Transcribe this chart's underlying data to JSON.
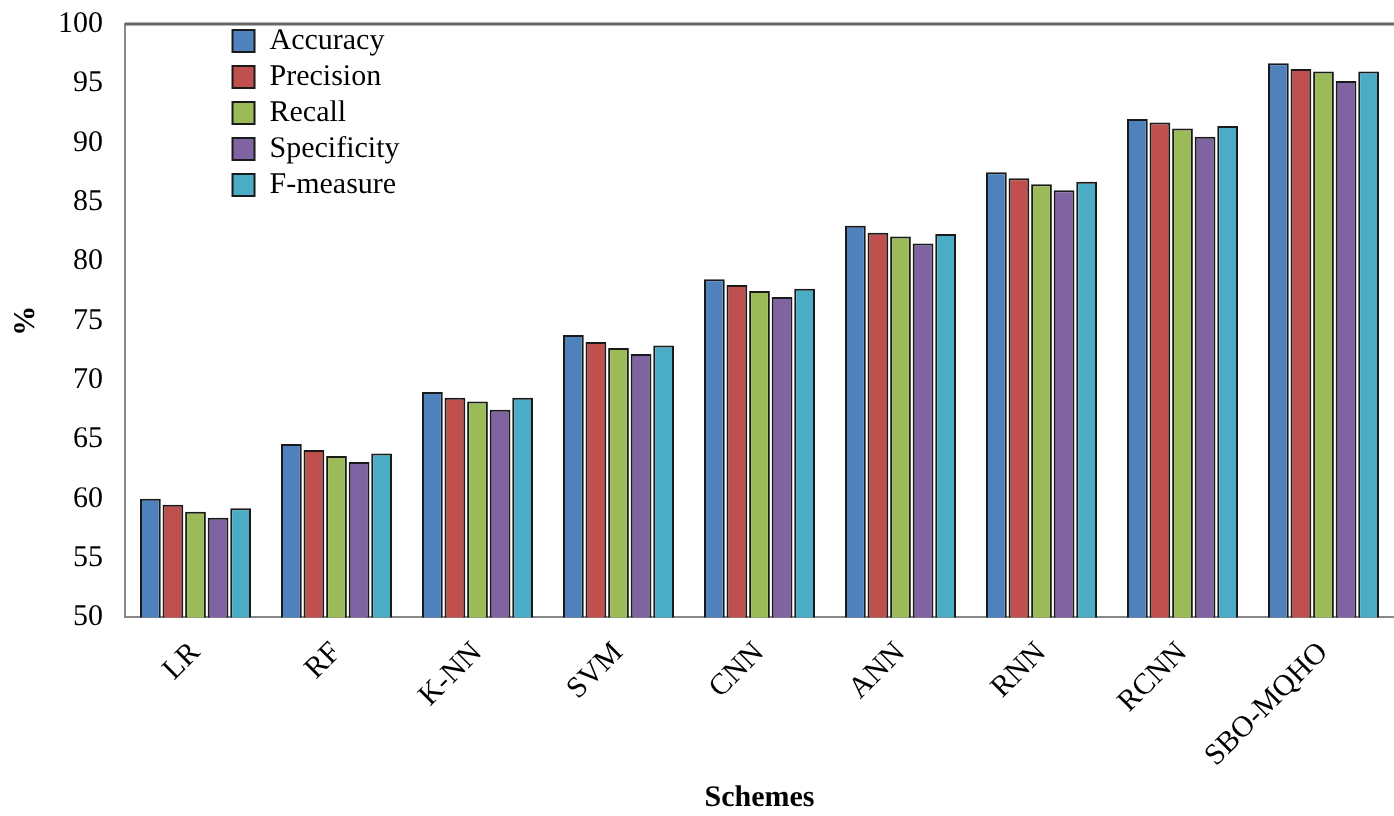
{
  "chart_data": {
    "type": "bar",
    "xlabel": "Schemes",
    "ylabel": "%",
    "categories": [
      "LR",
      "RF",
      "K-NN",
      "SVM",
      "CNN",
      "ANN",
      "RNN",
      "RCNN",
      "SBO-MQHO"
    ],
    "series": [
      {
        "name": "Accuracy",
        "color": "#4f81bd",
        "values": [
          60,
          64.6,
          69,
          73.8,
          78.5,
          83,
          87.5,
          92,
          96.7
        ]
      },
      {
        "name": "Precision",
        "color": "#c0504d",
        "values": [
          59.5,
          64.1,
          68.5,
          73.2,
          78,
          82.4,
          87,
          91.7,
          96.2
        ]
      },
      {
        "name": "Recall",
        "color": "#9bbb59",
        "values": [
          58.9,
          63.6,
          68.2,
          72.7,
          77.5,
          82.1,
          86.5,
          91.2,
          96
        ]
      },
      {
        "name": "Specificity",
        "color": "#8064a2",
        "values": [
          58.4,
          63.1,
          67.5,
          72.2,
          77,
          81.5,
          86,
          90.5,
          95.2
        ]
      },
      {
        "name": "F-measure",
        "color": "#4bacc6",
        "values": [
          59.2,
          63.8,
          68.5,
          72.9,
          77.7,
          82.3,
          86.7,
          91.4,
          96
        ]
      }
    ],
    "ylim": [
      50,
      100
    ],
    "yticks": [
      50,
      55,
      60,
      65,
      70,
      75,
      80,
      85,
      90,
      95,
      100
    ],
    "grid": false,
    "legend": "top left"
  }
}
